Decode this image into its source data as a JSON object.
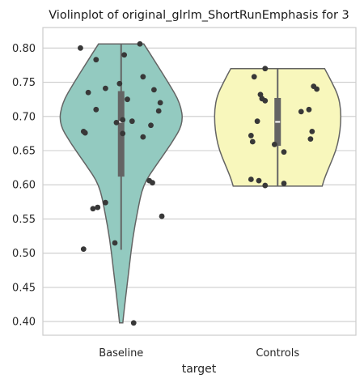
{
  "chart_data": {
    "type": "violin",
    "title": "Violinplot of original_glrlm_ShortRunEmphasis for 3",
    "xlabel": "target",
    "ylabel": "",
    "ylim": [
      0.38,
      0.83
    ],
    "yticks": [
      "0.40",
      "0.45",
      "0.50",
      "0.55",
      "0.60",
      "0.65",
      "0.70",
      "0.75",
      "0.80"
    ],
    "ytick_values": [
      0.4,
      0.45,
      0.5,
      0.55,
      0.6,
      0.65,
      0.7,
      0.75,
      0.8
    ],
    "grid": true,
    "categories": [
      "Baseline",
      "Controls"
    ],
    "series": [
      {
        "category": "Baseline",
        "color": "#93cac0",
        "min": 0.398,
        "max": 0.806,
        "q1": 0.612,
        "median": 0.692,
        "q3": 0.737,
        "whisker_low": 0.505,
        "whisker_high": 0.806,
        "profile": [
          [
            0.398,
            2
          ],
          [
            0.42,
            4
          ],
          [
            0.45,
            7
          ],
          [
            0.48,
            10
          ],
          [
            0.52,
            14
          ],
          [
            0.56,
            20
          ],
          [
            0.6,
            27
          ],
          [
            0.63,
            44
          ],
          [
            0.66,
            62
          ],
          [
            0.69,
            77
          ],
          [
            0.72,
            73
          ],
          [
            0.75,
            58
          ],
          [
            0.78,
            42
          ],
          [
            0.806,
            28
          ]
        ],
        "points": [
          [
            0.806,
            0.12
          ],
          [
            0.8,
            -0.26
          ],
          [
            0.79,
            0.02
          ],
          [
            0.783,
            -0.16
          ],
          [
            0.758,
            0.14
          ],
          [
            0.748,
            -0.01
          ],
          [
            0.741,
            -0.1
          ],
          [
            0.739,
            0.21
          ],
          [
            0.735,
            -0.21
          ],
          [
            0.725,
            0.04
          ],
          [
            0.72,
            0.25
          ],
          [
            0.71,
            -0.16
          ],
          [
            0.708,
            0.24
          ],
          [
            0.695,
            0.01
          ],
          [
            0.693,
            0.07
          ],
          [
            0.691,
            -0.03
          ],
          [
            0.687,
            0.19
          ],
          [
            0.678,
            -0.24
          ],
          [
            0.676,
            -0.23
          ],
          [
            0.675,
            0.01
          ],
          [
            0.67,
            0.14
          ],
          [
            0.606,
            0.18
          ],
          [
            0.603,
            0.2
          ],
          [
            0.574,
            -0.1
          ],
          [
            0.567,
            -0.15
          ],
          [
            0.565,
            -0.18
          ],
          [
            0.554,
            0.26
          ],
          [
            0.515,
            -0.04
          ],
          [
            0.506,
            -0.24
          ],
          [
            0.398,
            0.08
          ]
        ]
      },
      {
        "category": "Controls",
        "color": "#f8f7bc",
        "min": 0.598,
        "max": 0.77,
        "q1": 0.657,
        "median": 0.692,
        "q3": 0.727,
        "whisker_low": 0.598,
        "whisker_high": 0.77,
        "profile": [
          [
            0.598,
            55
          ],
          [
            0.61,
            58
          ],
          [
            0.63,
            65
          ],
          [
            0.65,
            72
          ],
          [
            0.67,
            76
          ],
          [
            0.69,
            78
          ],
          [
            0.71,
            78
          ],
          [
            0.73,
            75
          ],
          [
            0.75,
            67
          ],
          [
            0.77,
            58
          ]
        ],
        "points": [
          [
            0.77,
            -0.08
          ],
          [
            0.758,
            -0.15
          ],
          [
            0.744,
            0.23
          ],
          [
            0.74,
            0.25
          ],
          [
            0.732,
            -0.11
          ],
          [
            0.726,
            -0.1
          ],
          [
            0.723,
            -0.08
          ],
          [
            0.71,
            0.2
          ],
          [
            0.707,
            0.15
          ],
          [
            0.693,
            -0.13
          ],
          [
            0.678,
            0.22
          ],
          [
            0.672,
            -0.17
          ],
          [
            0.667,
            0.21
          ],
          [
            0.663,
            -0.16
          ],
          [
            0.659,
            -0.02
          ],
          [
            0.648,
            0.04
          ],
          [
            0.608,
            -0.17
          ],
          [
            0.606,
            -0.12
          ],
          [
            0.602,
            0.04
          ],
          [
            0.599,
            -0.08
          ]
        ]
      }
    ]
  }
}
